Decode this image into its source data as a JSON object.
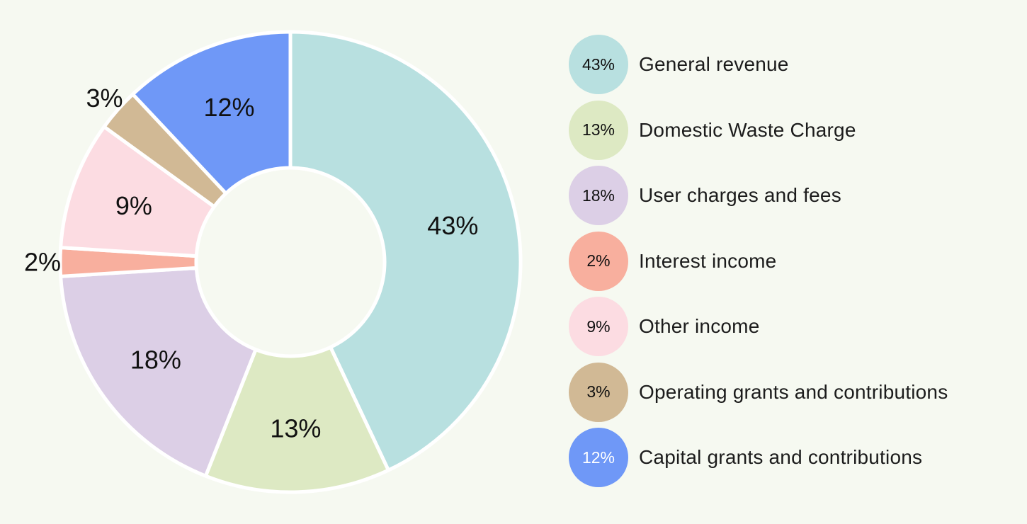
{
  "chart_data": {
    "type": "pie",
    "title": "",
    "donut": true,
    "legend_position": "right",
    "slices": [
      {
        "label": "General revenue",
        "value": 43,
        "display": "43%",
        "color": "#b8e0e0",
        "text_color": "#111111"
      },
      {
        "label": "Domestic Waste Charge",
        "value": 13,
        "display": "13%",
        "color": "#dde9c3",
        "text_color": "#111111"
      },
      {
        "label": "User charges and fees",
        "value": 18,
        "display": "18%",
        "color": "#dccfe6",
        "text_color": "#111111"
      },
      {
        "label": "Interest income",
        "value": 2,
        "display": "2%",
        "color": "#f8af9e",
        "text_color": "#111111"
      },
      {
        "label": "Other income",
        "value": 9,
        "display": "9%",
        "color": "#fcdce2",
        "text_color": "#111111"
      },
      {
        "label": "Operating grants and contributions",
        "value": 3,
        "display": "3%",
        "color": "#d1b995",
        "text_color": "#111111"
      },
      {
        "label": "Capital grants and contributions",
        "value": 12,
        "display": "12%",
        "color": "#6f98f7",
        "text_color": "#ffffff"
      }
    ]
  }
}
